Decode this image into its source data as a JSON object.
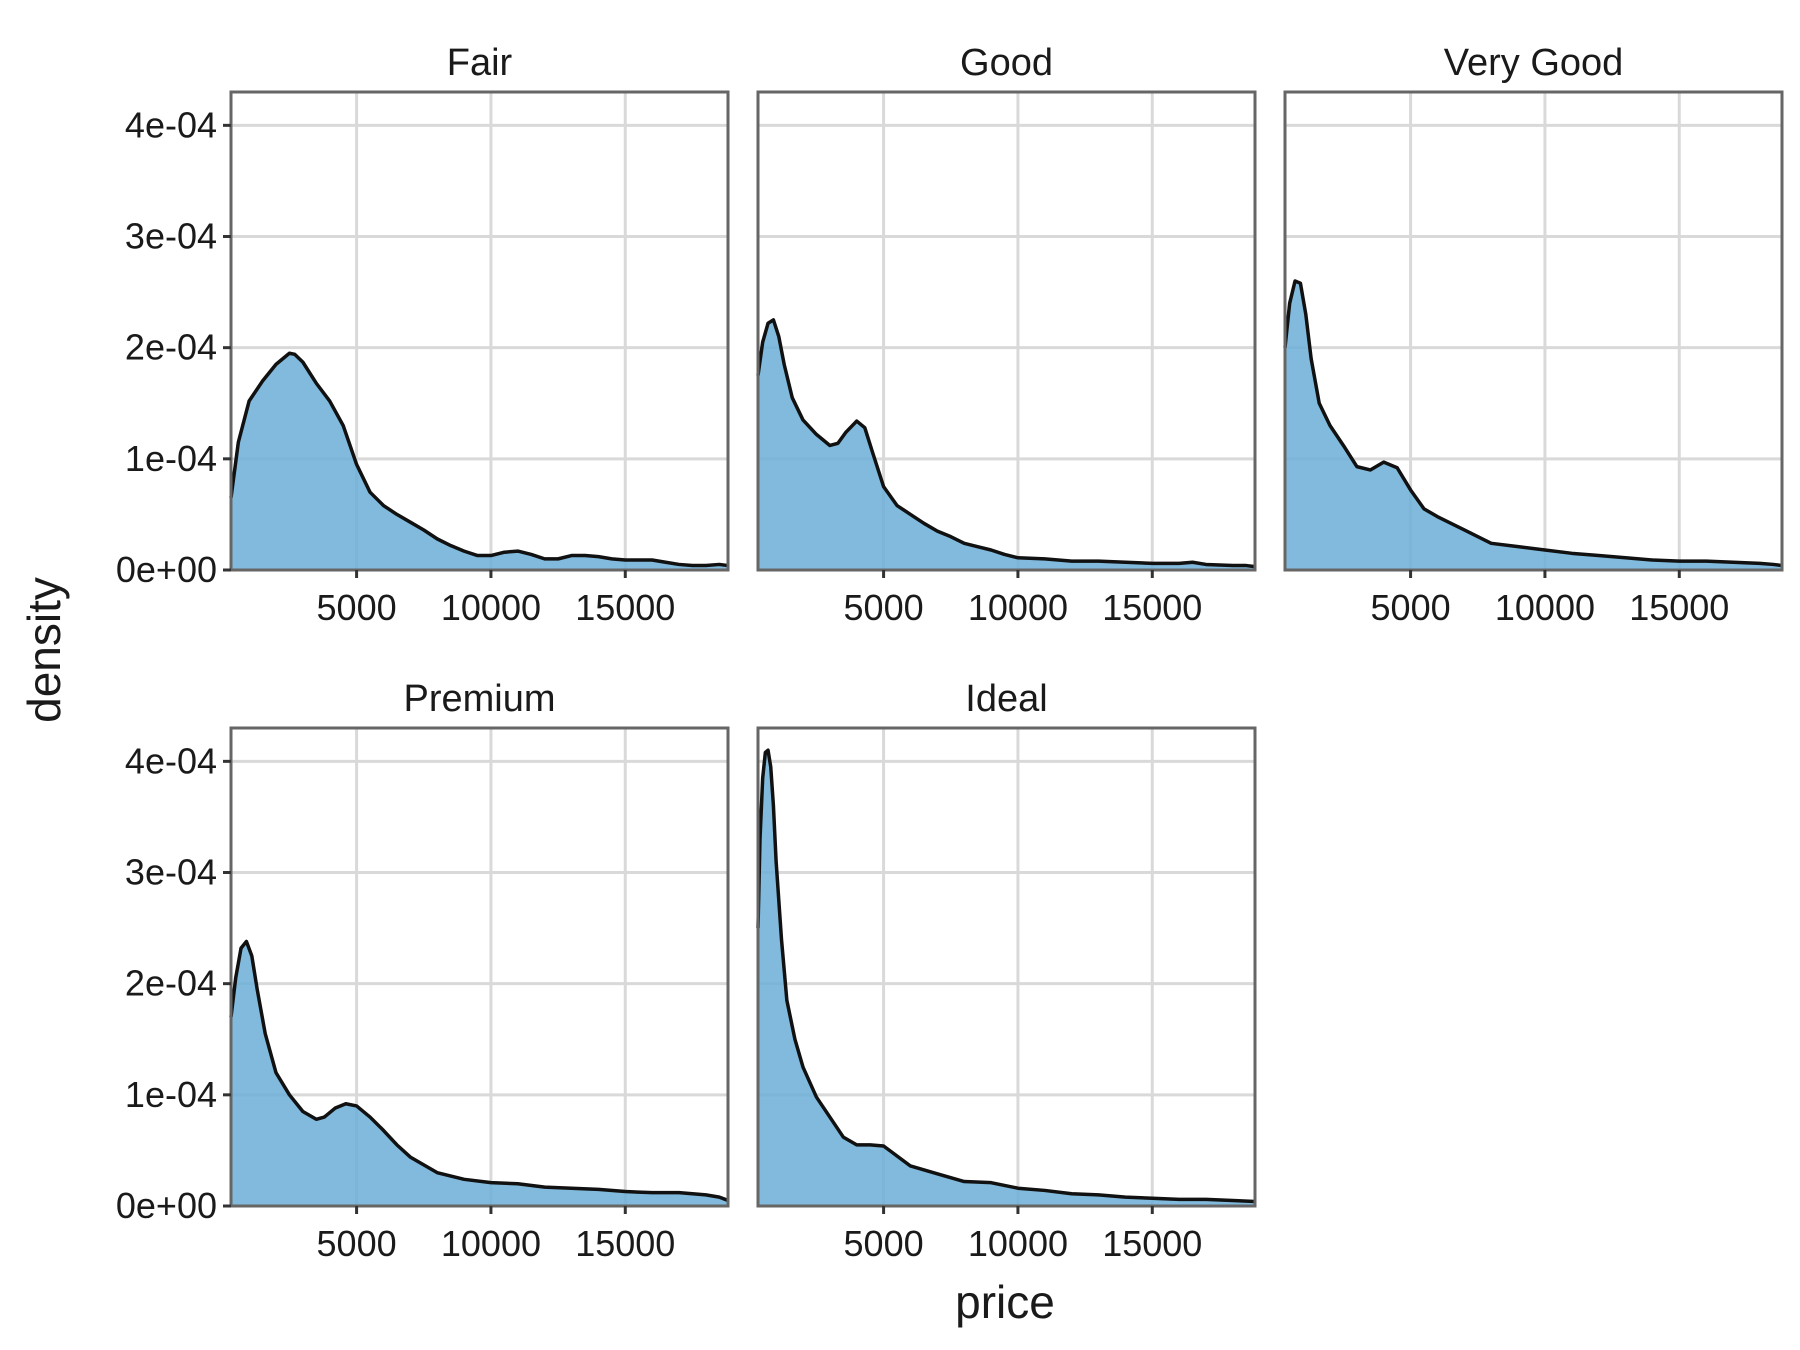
{
  "chart_data": {
    "type": "area",
    "subtype": "faceted density",
    "xlabel": "price",
    "ylabel": "density",
    "xlim": [
      326,
      18823
    ],
    "ylim": [
      0,
      0.00043
    ],
    "x_ticks": [
      5000,
      10000,
      15000
    ],
    "x_tick_labels": [
      "5000",
      "10000",
      "15000"
    ],
    "y_ticks": [
      0,
      0.0001,
      0.0002,
      0.0003,
      0.0004
    ],
    "y_tick_labels": [
      "0e+00",
      "1e-04",
      "2e-04",
      "3e-04",
      "4e-04"
    ],
    "grid": true,
    "fill_color": "#6baed6",
    "line_color": "#111111",
    "facets": [
      {
        "label": "Fair",
        "x": [
          326,
          600,
          1000,
          1500,
          2000,
          2500,
          2700,
          3000,
          3500,
          4000,
          4500,
          5000,
          5500,
          6000,
          6500,
          7000,
          7500,
          8000,
          8500,
          9000,
          9500,
          10000,
          10500,
          11000,
          11500,
          12000,
          12500,
          13000,
          13500,
          14000,
          14500,
          15000,
          15500,
          16000,
          16500,
          17000,
          17500,
          18000,
          18500,
          18823
        ],
        "y": [
          6.5e-05,
          0.000115,
          0.000152,
          0.00017,
          0.000185,
          0.000195,
          0.000194,
          0.000187,
          0.000168,
          0.000152,
          0.00013,
          9.5e-05,
          7e-05,
          5.8e-05,
          5e-05,
          4.3e-05,
          3.6e-05,
          2.8e-05,
          2.2e-05,
          1.7e-05,
          1.3e-05,
          1.3e-05,
          1.6e-05,
          1.7e-05,
          1.4e-05,
          1e-05,
          1e-05,
          1.3e-05,
          1.3e-05,
          1.2e-05,
          1e-05,
          9e-06,
          9e-06,
          9e-06,
          7e-06,
          5e-06,
          4e-06,
          4e-06,
          5e-06,
          4e-06
        ]
      },
      {
        "label": "Good",
        "x": [
          326,
          500,
          700,
          900,
          1100,
          1300,
          1600,
          2000,
          2500,
          3000,
          3300,
          3600,
          4000,
          4300,
          4600,
          5000,
          5500,
          6000,
          6500,
          7000,
          7500,
          8000,
          8500,
          9000,
          9500,
          10000,
          11000,
          12000,
          13000,
          14000,
          15000,
          16000,
          16500,
          17000,
          18000,
          18500,
          18823
        ],
        "y": [
          0.000175,
          0.000205,
          0.000222,
          0.000225,
          0.00021,
          0.000185,
          0.000155,
          0.000135,
          0.000122,
          0.000112,
          0.000114,
          0.000124,
          0.000134,
          0.000128,
          0.000105,
          7.5e-05,
          5.8e-05,
          5e-05,
          4.2e-05,
          3.5e-05,
          3e-05,
          2.4e-05,
          2.1e-05,
          1.8e-05,
          1.4e-05,
          1.1e-05,
          1e-05,
          8e-06,
          8e-06,
          7e-06,
          6e-06,
          6e-06,
          7e-06,
          5e-06,
          4e-06,
          4e-06,
          3e-06
        ]
      },
      {
        "label": "Very Good",
        "x": [
          326,
          500,
          700,
          900,
          1100,
          1300,
          1600,
          2000,
          2500,
          3000,
          3500,
          4000,
          4500,
          5000,
          5500,
          6000,
          7000,
          8000,
          9000,
          10000,
          11000,
          12000,
          13000,
          14000,
          15000,
          16000,
          17000,
          18000,
          18500,
          18823
        ],
        "y": [
          0.0002,
          0.00024,
          0.00026,
          0.000258,
          0.00023,
          0.00019,
          0.00015,
          0.00013,
          0.000112,
          9.3e-05,
          9e-05,
          9.7e-05,
          9.2e-05,
          7.2e-05,
          5.5e-05,
          4.8e-05,
          3.6e-05,
          2.4e-05,
          2.1e-05,
          1.8e-05,
          1.5e-05,
          1.3e-05,
          1.1e-05,
          9e-06,
          8e-06,
          8e-06,
          7e-06,
          6e-06,
          5e-06,
          4e-06
        ]
      },
      {
        "label": "Premium",
        "x": [
          326,
          500,
          700,
          900,
          1100,
          1300,
          1600,
          2000,
          2500,
          3000,
          3500,
          3800,
          4200,
          4600,
          5000,
          5500,
          6000,
          6500,
          7000,
          8000,
          9000,
          10000,
          11000,
          12000,
          13000,
          14000,
          15000,
          16000,
          17000,
          18000,
          18500,
          18823
        ],
        "y": [
          0.00017,
          0.000205,
          0.000232,
          0.000238,
          0.000225,
          0.000195,
          0.000155,
          0.00012,
          0.0001,
          8.5e-05,
          7.8e-05,
          8e-05,
          8.8e-05,
          9.2e-05,
          9e-05,
          8e-05,
          6.8e-05,
          5.5e-05,
          4.4e-05,
          3e-05,
          2.4e-05,
          2.1e-05,
          2e-05,
          1.7e-05,
          1.6e-05,
          1.5e-05,
          1.3e-05,
          1.2e-05,
          1.2e-05,
          1e-05,
          8e-06,
          5e-06
        ]
      },
      {
        "label": "Ideal",
        "x": [
          326,
          400,
          500,
          600,
          700,
          800,
          900,
          1000,
          1200,
          1400,
          1700,
          2000,
          2500,
          3000,
          3500,
          4000,
          4500,
          5000,
          5500,
          6000,
          7000,
          8000,
          9000,
          10000,
          11000,
          12000,
          13000,
          14000,
          15000,
          16000,
          17000,
          18000,
          18823
        ],
        "y": [
          0.00025,
          0.00033,
          0.000385,
          0.000408,
          0.00041,
          0.000395,
          0.00036,
          0.00031,
          0.00024,
          0.000185,
          0.00015,
          0.000125,
          9.8e-05,
          8e-05,
          6.2e-05,
          5.5e-05,
          5.5e-05,
          5.4e-05,
          4.5e-05,
          3.6e-05,
          2.9e-05,
          2.2e-05,
          2.1e-05,
          1.6e-05,
          1.4e-05,
          1.1e-05,
          1e-05,
          8e-06,
          7e-06,
          6e-06,
          6e-06,
          5e-06,
          4e-06
        ]
      }
    ]
  }
}
